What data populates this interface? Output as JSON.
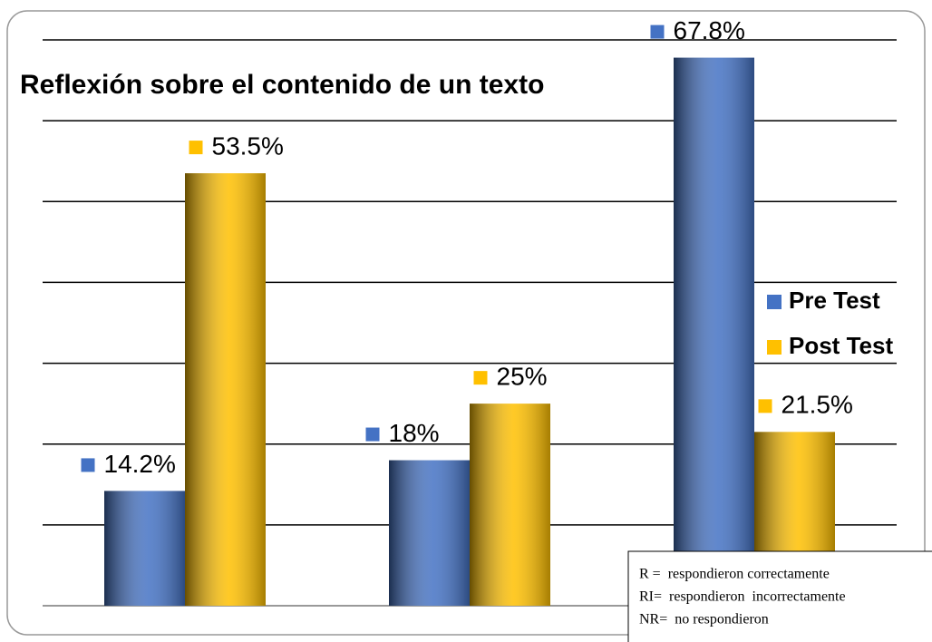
{
  "chart_data": {
    "type": "bar",
    "title": "Reflexión sobre el contenido de un texto",
    "categories": [
      null,
      null,
      null
    ],
    "series": [
      {
        "name": "Pre Test",
        "color": "#4472c4",
        "values": [
          14.2,
          18,
          67.8
        ],
        "value_labels": [
          "14.2%",
          "18%",
          "67.8%"
        ]
      },
      {
        "name": "Post Test",
        "color": "#ffc000",
        "values": [
          53.5,
          25,
          21.5
        ],
        "value_labels": [
          "53.5%",
          "25%",
          "21.5%"
        ]
      }
    ],
    "ylim": [
      0,
      70
    ],
    "yticks": [
      0,
      10,
      20,
      30,
      40,
      50,
      60,
      70
    ],
    "grid": true,
    "legend": "right",
    "notes": [
      "R =  respondieron correctamente",
      "RI=  respondieron  incorrectamente",
      "NR=  no respondieron"
    ]
  }
}
